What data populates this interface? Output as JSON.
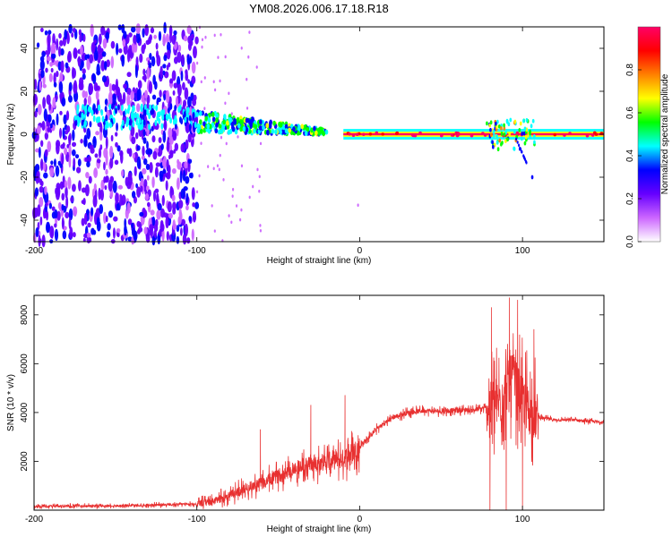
{
  "title": "YM08.2026.006.17.18.R18",
  "chart_data": [
    {
      "type": "heatmap",
      "name": "spectrogram",
      "xlabel": "Height of straight line (km)",
      "ylabel": "Frequency (Hz)",
      "xlim": [
        -200,
        150
      ],
      "ylim": [
        -50,
        50
      ],
      "xticks": [
        "-200",
        "-100",
        "0",
        "100"
      ],
      "xtick_values": [
        -200,
        -100,
        0,
        100
      ],
      "yticks": [
        "-40",
        "-20",
        "0",
        "20",
        "40"
      ],
      "ytick_values": [
        -40,
        -20,
        0,
        20,
        40
      ],
      "colorbar": {
        "label": "Normalized spectral amplitude",
        "range": [
          0,
          1
        ],
        "ticks": [
          "0.0",
          "0.2",
          "0.4",
          "0.6",
          "0.8"
        ],
        "tick_values": [
          0.0,
          0.2,
          0.4,
          0.6,
          0.8
        ],
        "colors": [
          "#ffffff",
          "#cc66ff",
          "#6600ff",
          "#0000ff",
          "#00ffff",
          "#00ff00",
          "#ffff00",
          "#ff8000",
          "#ff0000",
          "#ff0066"
        ]
      },
      "features": [
        {
          "desc": "scattered noise",
          "x": [
            -200,
            -100
          ],
          "freq": [
            -50,
            50
          ],
          "amplitude": 0.15
        },
        {
          "desc": "noise band near 8 Hz",
          "x": [
            -175,
            -100
          ],
          "freq": 8,
          "amplitude": 0.35
        },
        {
          "desc": "ridge converging",
          "x": [
            -100,
            -20
          ],
          "freq_start": 6,
          "freq_end": 1,
          "amplitude": 0.55
        },
        {
          "desc": "strong line",
          "x": [
            -10,
            150
          ],
          "freq": 0,
          "amplitude": 0.95
        },
        {
          "desc": "burst",
          "x": [
            78,
            108
          ],
          "freq": [
            -20,
            12
          ],
          "amplitude": 0.5
        }
      ]
    },
    {
      "type": "line",
      "name": "snr",
      "xlabel": "Height of straight line (km)",
      "ylabel": "SNR (10 * v/v)",
      "xlim": [
        -200,
        150
      ],
      "ylim": [
        0,
        8800
      ],
      "xticks": [
        "-200",
        "-100",
        "0",
        "100"
      ],
      "xtick_values": [
        -200,
        -100,
        0,
        100
      ],
      "yticks": [
        "2000",
        "4000",
        "6000",
        "8000"
      ],
      "ytick_values": [
        2000,
        4000,
        6000,
        8000
      ],
      "color": "#e83030",
      "x": [
        -200,
        -150,
        -100,
        -90,
        -80,
        -70,
        -60,
        -50,
        -40,
        -30,
        -20,
        -10,
        0,
        10,
        20,
        30,
        40,
        50,
        60,
        70,
        78,
        82,
        86,
        90,
        94,
        98,
        102,
        106,
        110,
        120,
        130,
        140,
        150
      ],
      "y": [
        150,
        180,
        250,
        350,
        600,
        900,
        1100,
        1400,
        1700,
        1900,
        2000,
        2100,
        2600,
        3300,
        3800,
        4000,
        4080,
        4050,
        4100,
        4100,
        4200,
        4300,
        4400,
        5000,
        5500,
        4800,
        4300,
        3900,
        3800,
        3700,
        3700,
        3650,
        3600
      ],
      "peaks": [
        {
          "x": 81,
          "y": 8300
        },
        {
          "x": 92,
          "y": 8700
        },
        {
          "x": 97,
          "y": 8600
        },
        {
          "x": 107,
          "y": 7400
        },
        {
          "x": -9,
          "y": 4700
        },
        {
          "x": -30,
          "y": 4300
        },
        {
          "x": -61,
          "y": 3300
        }
      ],
      "dips": [
        {
          "x": 80,
          "y": 0
        },
        {
          "x": 90,
          "y": 0
        },
        {
          "x": 100,
          "y": 0
        }
      ]
    }
  ]
}
